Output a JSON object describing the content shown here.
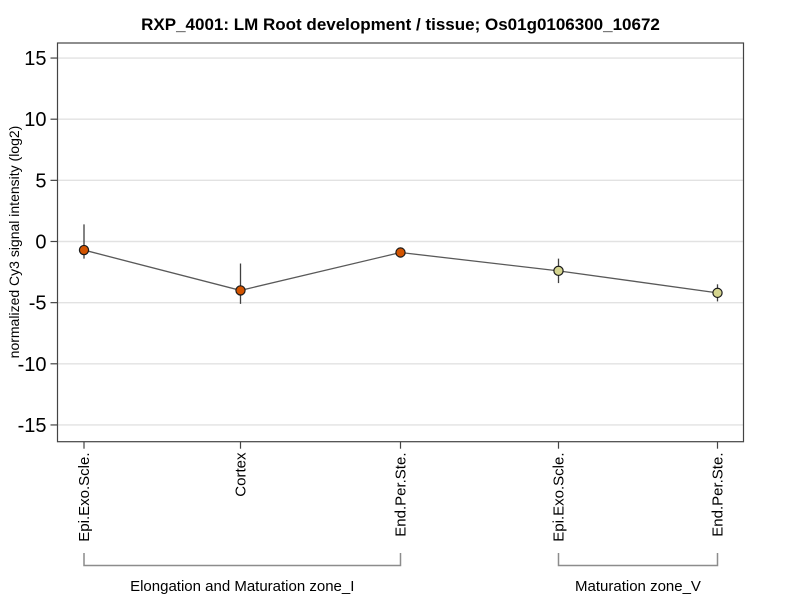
{
  "chart_data": {
    "type": "line",
    "title": "RXP_4001: LM Root development / tissue; Os01g0106300_10672",
    "ylabel": "normalized Cy3 signal intensity (log2)",
    "ylim": [
      -16.3,
      16.3
    ],
    "yticks": [
      15,
      10,
      5,
      0,
      -5,
      -10,
      -15
    ],
    "grid": true,
    "legend_position": "none",
    "categories": [
      "Epi.Exo.Scle.",
      "Cortex",
      "End.Per.Ste.",
      "Epi.Exo.Scle.",
      "End.Per.Ste."
    ],
    "series": [
      {
        "name": "normalized Cy3 signal intensity",
        "values": [
          -0.7,
          -4.0,
          -0.9,
          -2.4,
          -4.2
        ]
      }
    ],
    "error_bars": [
      {
        "lo": -1.4,
        "hi": 1.4
      },
      {
        "lo": -5.1,
        "hi": -1.8
      },
      {
        "lo": -1.1,
        "hi": -0.7
      },
      {
        "lo": -3.4,
        "hi": -1.4
      },
      {
        "lo": -4.9,
        "hi": -3.5
      }
    ],
    "point_colors": [
      "#d35400",
      "#d35400",
      "#d35400",
      "#d4d48e",
      "#d4d48e"
    ],
    "groups": [
      {
        "label": "Elongation and Maturation zone_I",
        "from": 0,
        "to": 2,
        "point_color": "#d35400"
      },
      {
        "label": "Maturation zone_V",
        "from": 3,
        "to": 4,
        "point_color": "#d4d48e"
      }
    ],
    "colors": {
      "line": "#595959",
      "error_bar": "#404040",
      "grid": "#e2e2e2",
      "axis": "#444444",
      "tick": "#444444",
      "bracket": "#8c8c8c",
      "point_outline": "#1a1a1a",
      "text": "#000000"
    }
  }
}
